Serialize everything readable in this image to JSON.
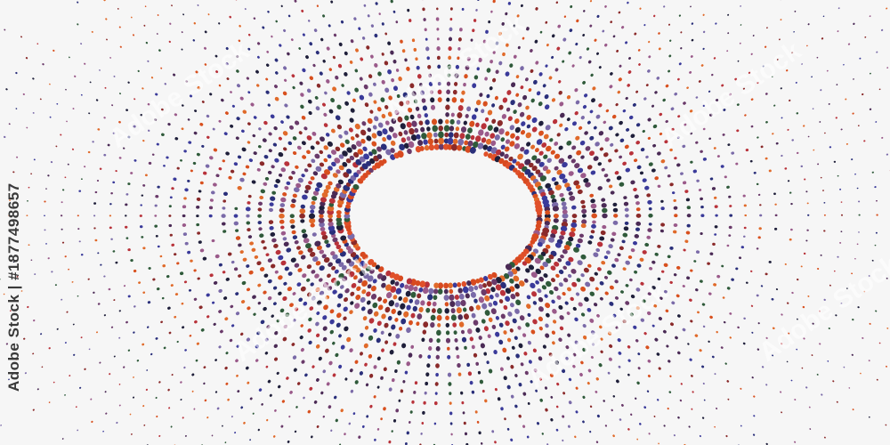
{
  "image": {
    "description_type": "abstract radial dotted burst",
    "background_color": "#f6f6f6",
    "dot_colors": [
      "#8a2a2a",
      "#2a2f7a",
      "#d8501e",
      "#4a2a55",
      "#2f5a3a",
      "#6a3a6a",
      "#e06a2a",
      "#3a3a9a",
      "#9a5a8a",
      "#b8323a",
      "#1f1f3a",
      "#7a6aa8"
    ]
  },
  "stock_id": {
    "label": "Adobe Stock | #1877498657"
  },
  "watermark": {
    "text": "Adobe Stock"
  }
}
